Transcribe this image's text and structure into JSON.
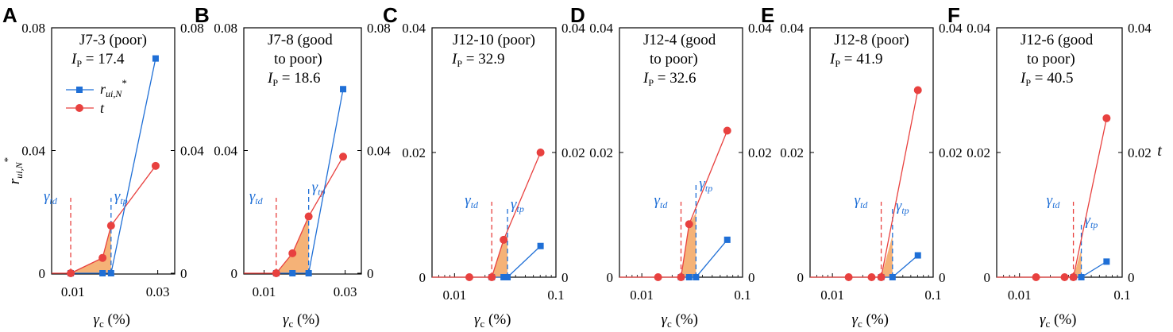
{
  "figure": {
    "y_axis_label": "r",
    "y_axis_label_sub": "ui,N",
    "y_axis_label_sup": "*",
    "right_axis_label": "t",
    "x_axis_label": "γ",
    "x_axis_label_sub": "c",
    "x_axis_label_unit": "(%)",
    "legend": {
      "series_blue_label": "r",
      "series_blue_sub": "ui,N",
      "series_blue_sup": "*",
      "series_red_label": "t"
    },
    "marker_labels": {
      "td_main": "γ",
      "td_sub": "td",
      "tp_main": "γ",
      "tp_sub": "tp"
    },
    "colors": {
      "blue": "#1f6fd6",
      "red": "#e8413f",
      "fill": "#f5b277",
      "axis": "#000000"
    }
  },
  "chart_data": [
    {
      "type": "line",
      "letter": "A",
      "title_line1": "J7-3 (poor)",
      "title_line2": "",
      "ip_label": "I",
      "ip_sub": "P",
      "ip_value": "= 17.4",
      "x_ticks": [
        "0.01",
        "0.03"
      ],
      "x_tick_values": [
        0.01,
        0.03
      ],
      "xlim": [
        0.005,
        0.034
      ],
      "y_ticks": [
        "0",
        "0.04",
        "0.08"
      ],
      "y_tick_values": [
        0,
        0.04,
        0.08
      ],
      "ylim": [
        0,
        0.08
      ],
      "gamma_td": 0.0095,
      "gamma_tp": 0.019,
      "series": [
        {
          "name": "r_ui,N*",
          "color": "blue",
          "x": [
            0.0095,
            0.017,
            0.019,
            0.0295
          ],
          "y": [
            0.0,
            0.0,
            0.0,
            0.07
          ]
        },
        {
          "name": "t",
          "color": "red",
          "x": [
            0.0095,
            0.017,
            0.019,
            0.0295
          ],
          "y": [
            0.0,
            0.005,
            0.0155,
            0.035
          ]
        }
      ]
    },
    {
      "type": "line",
      "letter": "B",
      "title_line1": "J7-8 (good",
      "title_line2": "to poor)",
      "ip_label": "I",
      "ip_sub": "P",
      "ip_value": "= 18.6",
      "x_ticks": [
        "0.01",
        "0.03"
      ],
      "x_tick_values": [
        0.01,
        0.03
      ],
      "xlim": [
        0.005,
        0.034
      ],
      "y_ticks": [
        "0",
        "0.04",
        "0.08"
      ],
      "y_tick_values": [
        0,
        0.04,
        0.08
      ],
      "ylim": [
        0,
        0.08
      ],
      "gamma_td": 0.013,
      "gamma_tp": 0.021,
      "series": [
        {
          "name": "r_ui,N*",
          "color": "blue",
          "x": [
            0.013,
            0.017,
            0.021,
            0.0295
          ],
          "y": [
            0.0,
            0.0,
            0.0,
            0.06
          ]
        },
        {
          "name": "t",
          "color": "red",
          "x": [
            0.013,
            0.017,
            0.021,
            0.0295
          ],
          "y": [
            0.0,
            0.0065,
            0.0185,
            0.038
          ]
        }
      ]
    },
    {
      "type": "line",
      "letter": "C",
      "title_line1": "J12-10 (poor)",
      "title_line2": "",
      "ip_label": "I",
      "ip_sub": "P",
      "ip_value": "= 32.9",
      "x_ticks": [
        "0.01",
        "0.1"
      ],
      "x_tick_values": [
        0.01,
        0.1
      ],
      "xlim": [
        0.006,
        0.1
      ],
      "x_scale": "log",
      "y_ticks": [
        "0",
        "0.02",
        "0.04"
      ],
      "y_tick_values": [
        0,
        0.02,
        0.04
      ],
      "ylim": [
        0,
        0.04
      ],
      "gamma_td": 0.0233,
      "gamma_tp": 0.0333,
      "series": [
        {
          "name": "r_ui,N*",
          "color": "blue",
          "x": [
            0.0233,
            0.0305,
            0.0333,
            0.0705
          ],
          "y": [
            0.0,
            0.0,
            0.0,
            0.005
          ]
        },
        {
          "name": "t",
          "color": "red",
          "x": [
            0.014,
            0.0233,
            0.0305,
            0.0705
          ],
          "y": [
            0.0,
            0.0,
            0.006,
            0.02
          ]
        }
      ]
    },
    {
      "type": "line",
      "letter": "D",
      "title_line1": "J12-4 (good",
      "title_line2": "to poor)",
      "ip_label": "I",
      "ip_sub": "P",
      "ip_value": "= 32.6",
      "x_ticks": [
        "0.01",
        "0.1"
      ],
      "x_tick_values": [
        0.01,
        0.1
      ],
      "xlim": [
        0.006,
        0.1
      ],
      "x_scale": "log",
      "y_ticks": [
        "0",
        "0.02",
        "0.04"
      ],
      "y_tick_values": [
        0,
        0.02,
        0.04
      ],
      "ylim": [
        0,
        0.04
      ],
      "gamma_td": 0.0245,
      "gamma_tp": 0.0345,
      "series": [
        {
          "name": "r_ui,N*",
          "color": "blue",
          "x": [
            0.0245,
            0.0295,
            0.0345,
            0.0705
          ],
          "y": [
            0.0,
            0.0,
            0.0,
            0.006
          ]
        },
        {
          "name": "t",
          "color": "red",
          "x": [
            0.0145,
            0.0245,
            0.0295,
            0.0705
          ],
          "y": [
            0.0,
            0.0,
            0.0085,
            0.0235
          ]
        }
      ]
    },
    {
      "type": "line",
      "letter": "E",
      "title_line1": "J12-8 (poor)",
      "title_line2": "",
      "ip_label": "I",
      "ip_sub": "P",
      "ip_value": "= 41.9",
      "x_ticks": [
        "0.01",
        "0.1"
      ],
      "x_tick_values": [
        0.01,
        0.1
      ],
      "xlim": [
        0.006,
        0.1
      ],
      "x_scale": "log",
      "y_ticks": [
        "0",
        "0.02",
        "0.04"
      ],
      "y_tick_values": [
        0,
        0.02,
        0.04
      ],
      "ylim": [
        0,
        0.04
      ],
      "gamma_td": 0.0305,
      "gamma_tp": 0.0395,
      "series": [
        {
          "name": "r_ui,N*",
          "color": "blue",
          "x": [
            0.0305,
            0.0395,
            0.0705
          ],
          "y": [
            0.0,
            0.0,
            0.0035
          ]
        },
        {
          "name": "t",
          "color": "red",
          "x": [
            0.0145,
            0.0245,
            0.0305,
            0.0705
          ],
          "y": [
            0.0,
            0.0,
            0.0,
            0.03
          ]
        }
      ]
    },
    {
      "type": "line",
      "letter": "F",
      "title_line1": "J12-6 (good",
      "title_line2": "to poor)",
      "ip_label": "I",
      "ip_sub": "P",
      "ip_value": "= 40.5",
      "x_ticks": [
        "0.01",
        "0.1"
      ],
      "x_tick_values": [
        0.01,
        0.1
      ],
      "xlim": [
        0.006,
        0.1
      ],
      "x_scale": "log",
      "y_ticks": [
        "0",
        "0.02",
        "0.04"
      ],
      "y_tick_values": [
        0,
        0.02,
        0.04
      ],
      "ylim": [
        0,
        0.04
      ],
      "gamma_td": 0.0335,
      "gamma_tp": 0.04,
      "series": [
        {
          "name": "r_ui,N*",
          "color": "blue",
          "x": [
            0.0335,
            0.04,
            0.0705
          ],
          "y": [
            0.0,
            0.0,
            0.0025
          ]
        },
        {
          "name": "t",
          "color": "red",
          "x": [
            0.0145,
            0.0275,
            0.0335,
            0.0705
          ],
          "y": [
            0.0,
            0.0,
            0.0,
            0.0255
          ]
        }
      ]
    }
  ]
}
